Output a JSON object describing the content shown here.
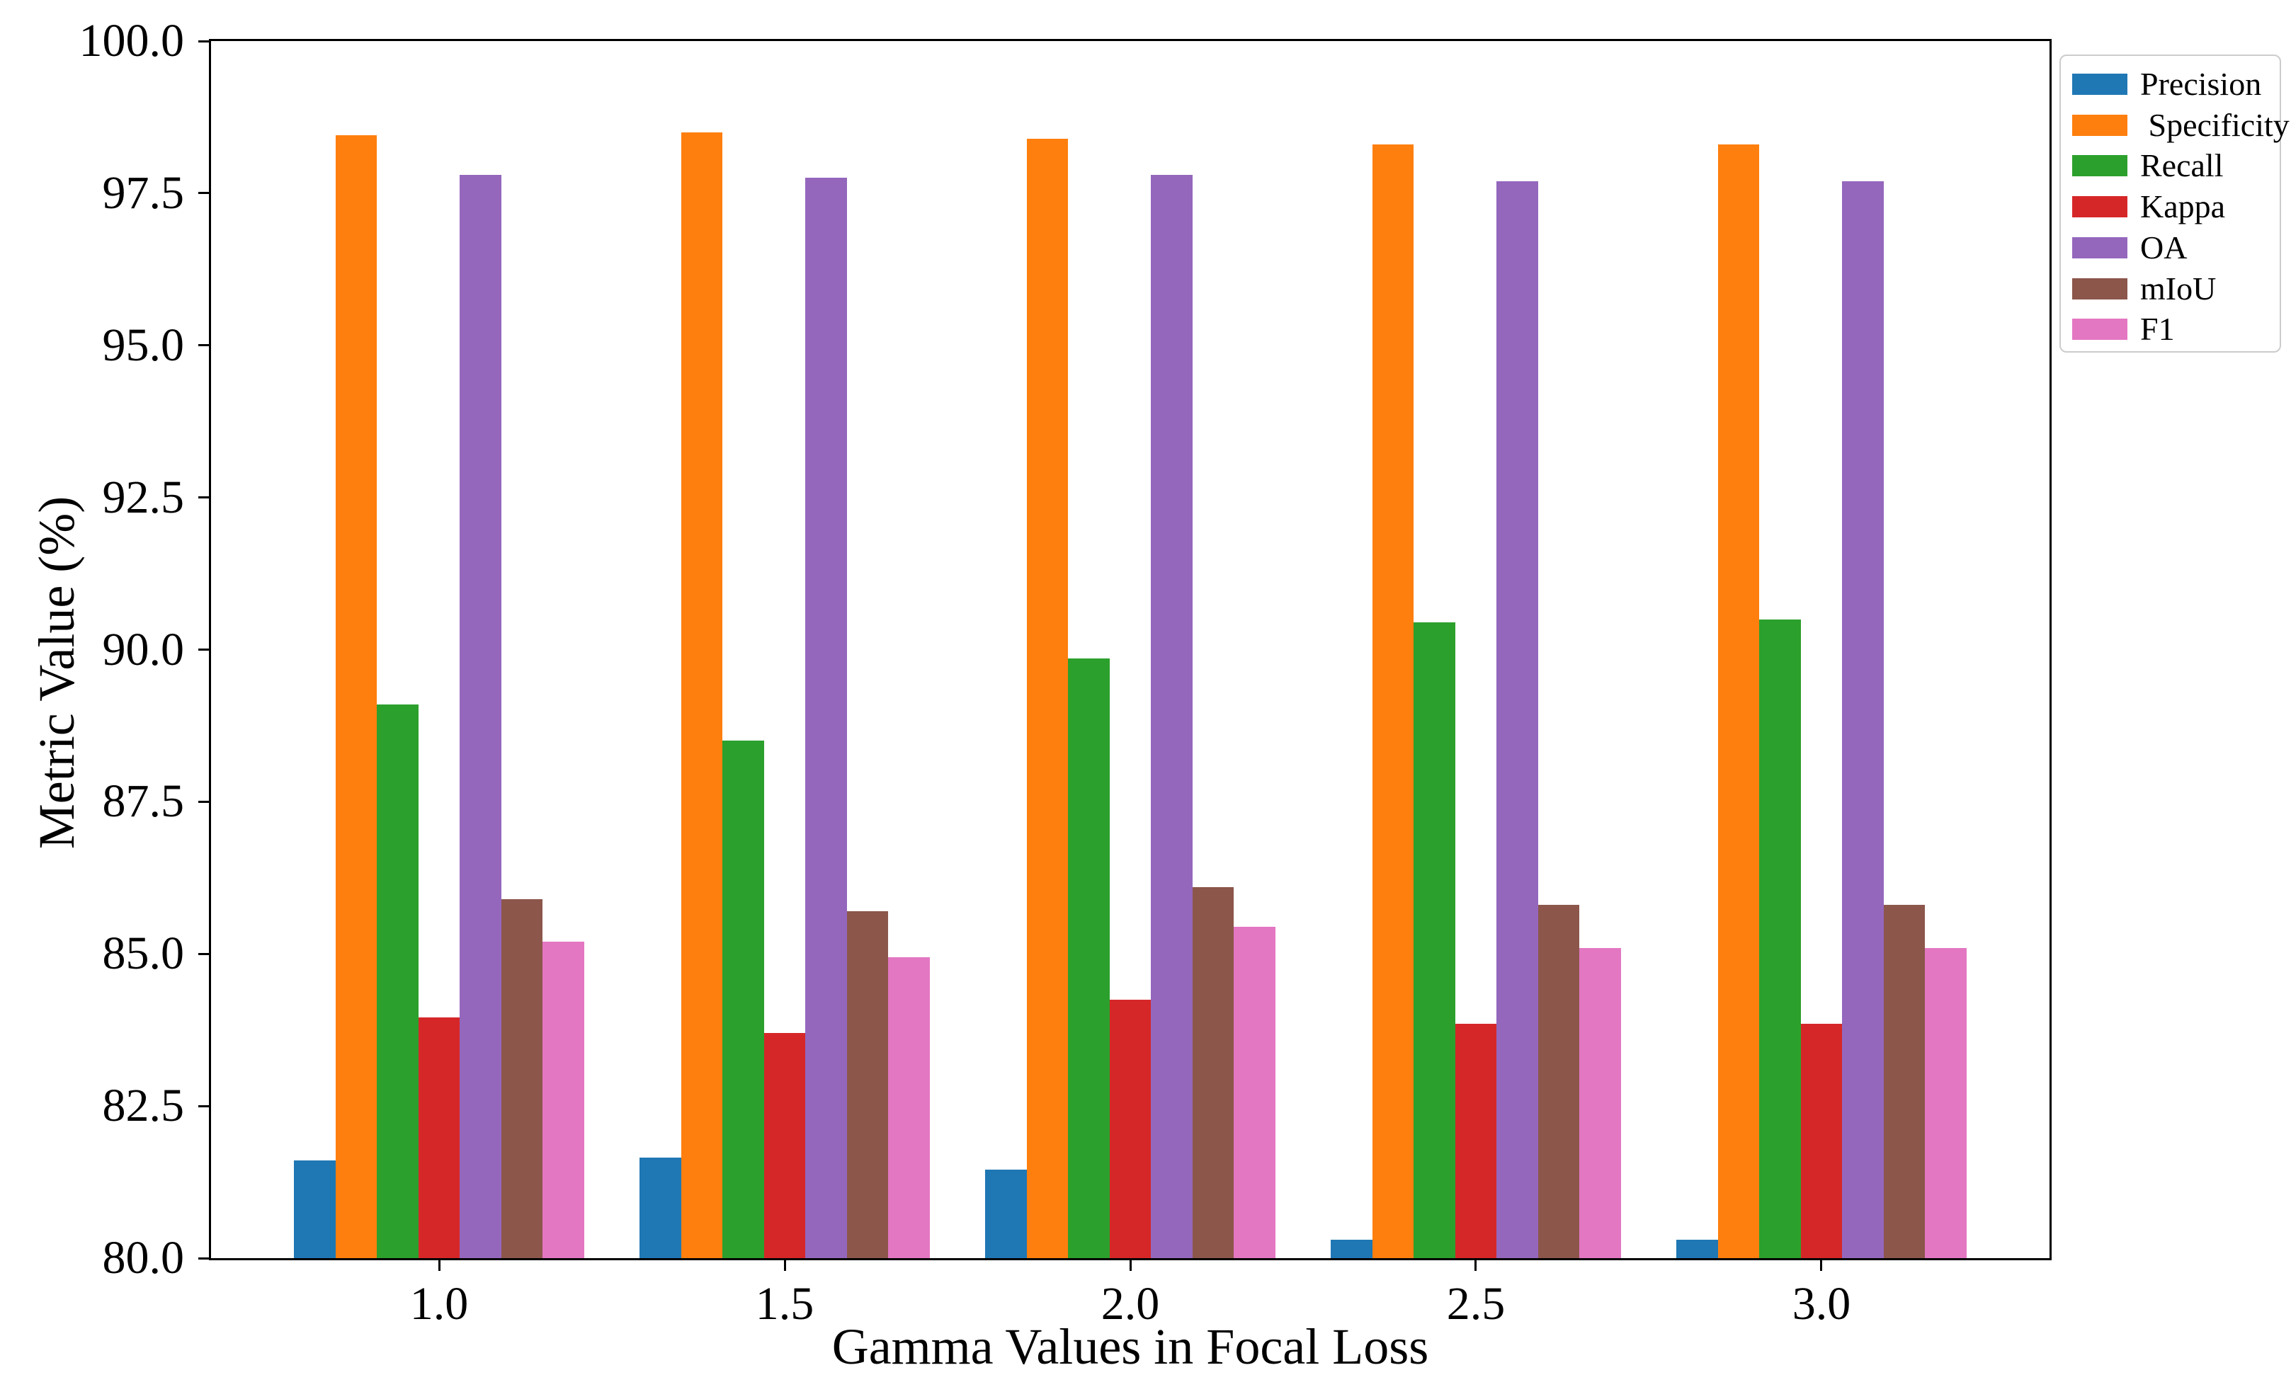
{
  "chart_data": {
    "type": "bar",
    "title": "",
    "xlabel": "Gamma Values in Focal Loss",
    "ylabel": "Metric Value (%)",
    "categories": [
      "1.0",
      "1.5",
      "2.0",
      "2.5",
      "3.0"
    ],
    "series": [
      {
        "name": "Precision",
        "color": "#1f77b4",
        "values": [
          81.6,
          81.65,
          81.45,
          80.3,
          80.3
        ]
      },
      {
        "name": " Specificity",
        "color": "#ff7f0e",
        "values": [
          98.45,
          98.5,
          98.4,
          98.3,
          98.3
        ]
      },
      {
        "name": "Recall",
        "color": "#2ca02c",
        "values": [
          89.1,
          88.5,
          89.85,
          90.45,
          90.5
        ]
      },
      {
        "name": "Kappa",
        "color": "#d62728",
        "values": [
          83.95,
          83.7,
          84.25,
          83.85,
          83.85
        ]
      },
      {
        "name": "OA",
        "color": "#9467bd",
        "values": [
          97.8,
          97.75,
          97.8,
          97.7,
          97.7
        ]
      },
      {
        "name": "mIoU",
        "color": "#8c564b",
        "values": [
          85.9,
          85.7,
          86.1,
          85.8,
          85.8
        ]
      },
      {
        "name": "F1",
        "color": "#e377c2",
        "values": [
          85.2,
          84.95,
          85.45,
          85.1,
          85.1
        ]
      }
    ],
    "ylim": [
      80.0,
      100.0
    ],
    "ytick_labels": [
      "80.0",
      "82.5",
      "85.0",
      "87.5",
      "90.0",
      "92.5",
      "95.0",
      "97.5",
      "100.0"
    ],
    "ytick_values": [
      80.0,
      82.5,
      85.0,
      87.5,
      90.0,
      92.5,
      95.0,
      97.5,
      100.0
    ],
    "grid": false,
    "legend_position": "upper-right-outside",
    "axis_color": "#000000",
    "background_color": "#ffffff"
  }
}
